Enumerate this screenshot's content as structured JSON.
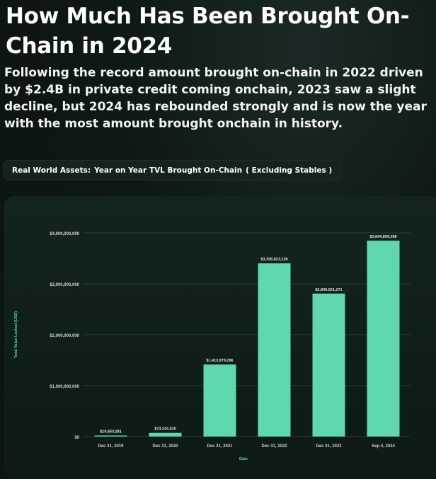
{
  "page": {
    "headline": "How Much Has Been Brought On-Chain in 2024",
    "description": "Following the record amount brought on-chain in 2022 driven by $2.4B in private credit coming onchain, 2023 saw a slight decline, but 2024 has rebounded strongly and is now the year with the most amount brought onchain in history."
  },
  "chart_header": {
    "label": "Real World Assets:",
    "title": "Year on Year TVL Brought On-Chain",
    "qualifier": "( Excluding Stables )"
  },
  "colors": {
    "bar": "#5fd8ae",
    "grid": "#2a3a35",
    "axis_text": "#c9d3cf",
    "accent": "#5fd8ae"
  },
  "chart_data": {
    "type": "bar",
    "xlabel": "Date",
    "ylabel": "Total Value Locked (USD)",
    "ylim": [
      0,
      4000000000
    ],
    "yticks": [
      0,
      1000000000,
      2000000000,
      3000000000,
      4000000000
    ],
    "ytick_labels": [
      "$0",
      "$1,000,000,000",
      "$2,000,000,000",
      "$3,000,000,000",
      "$4,000,000,000"
    ],
    "categories": [
      "Dec 31, 2019",
      "Dec 31, 2020",
      "Dec 31, 2021",
      "Dec 31, 2022",
      "Dec 31, 2023",
      "Sep 4, 2024"
    ],
    "values": [
      10853281,
      73244520,
      1413879296,
      3399823128,
      2806561271,
      3844899288
    ],
    "value_labels": [
      "$10,853,281",
      "$73,244,520",
      "$1,413,879,296",
      "$3,399,823,128",
      "$2,806,561,271",
      "$3,844,899,288"
    ],
    "grid": true,
    "legend": "none"
  }
}
